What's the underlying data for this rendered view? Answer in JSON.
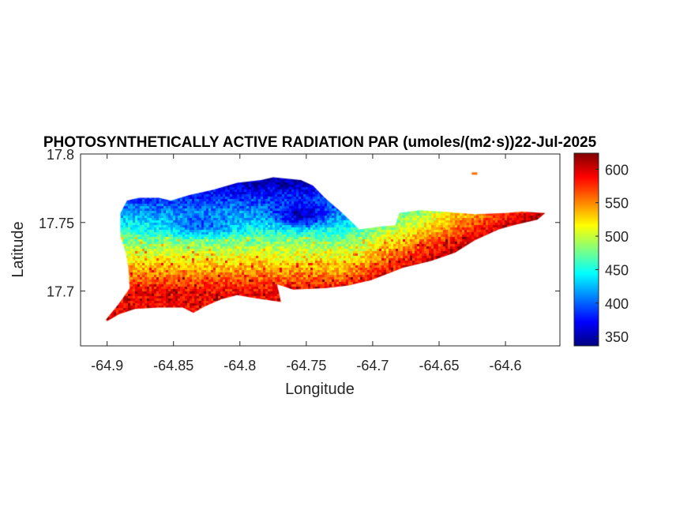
{
  "chart_data": {
    "type": "heatmap",
    "title": "PHOTOSYNTHETICALLY ACTIVE RADIATION PAR (umoles/(m2·s))22-Jul-2025",
    "xlabel": "Longitude",
    "ylabel": "Latitude",
    "xlim": [
      -64.92,
      -64.559
    ],
    "ylim": [
      17.66,
      17.8
    ],
    "xticks": [
      -64.9,
      -64.85,
      -64.8,
      -64.75,
      -64.7,
      -64.65,
      -64.6
    ],
    "xtick_labels": [
      "-64.9",
      "-64.85",
      "-64.8",
      "-64.75",
      "-64.7",
      "-64.65",
      "-64.6"
    ],
    "yticks": [
      17.7,
      17.75,
      17.8
    ],
    "ytick_labels": [
      "17.7",
      "17.75",
      "17.8"
    ],
    "colorbar": {
      "colormap": "jet",
      "clim": [
        336,
        624
      ],
      "ticks": [
        350,
        400,
        450,
        500,
        550,
        600
      ],
      "tick_labels": [
        "350",
        "400",
        "450",
        "500",
        "550",
        "600"
      ]
    },
    "grid": false,
    "island_outline_lonlat": [
      [
        -64.901,
        17.679
      ],
      [
        -64.891,
        17.691
      ],
      [
        -64.883,
        17.702
      ],
      [
        -64.884,
        17.717
      ],
      [
        -64.886,
        17.728
      ],
      [
        -64.89,
        17.74
      ],
      [
        -64.89,
        17.757
      ],
      [
        -64.885,
        17.766
      ],
      [
        -64.876,
        17.768
      ],
      [
        -64.861,
        17.768
      ],
      [
        -64.852,
        17.766
      ],
      [
        -64.838,
        17.77
      ],
      [
        -64.82,
        17.774
      ],
      [
        -64.802,
        17.779
      ],
      [
        -64.784,
        17.781
      ],
      [
        -64.775,
        17.783
      ],
      [
        -64.754,
        17.781
      ],
      [
        -64.745,
        17.777
      ],
      [
        -64.736,
        17.768
      ],
      [
        -64.724,
        17.758
      ],
      [
        -64.71,
        17.745
      ],
      [
        -64.695,
        17.747
      ],
      [
        -64.683,
        17.748
      ],
      [
        -64.68,
        17.757
      ],
      [
        -64.665,
        17.759
      ],
      [
        -64.647,
        17.758
      ],
      [
        -64.623,
        17.756
      ],
      [
        -64.6,
        17.757
      ],
      [
        -64.588,
        17.758
      ],
      [
        -64.57,
        17.757
      ],
      [
        -64.576,
        17.752
      ],
      [
        -64.594,
        17.748
      ],
      [
        -64.605,
        17.745
      ],
      [
        -64.623,
        17.737
      ],
      [
        -64.638,
        17.728
      ],
      [
        -64.656,
        17.722
      ],
      [
        -64.677,
        17.717
      ],
      [
        -64.701,
        17.708
      ],
      [
        -64.719,
        17.704
      ],
      [
        -64.736,
        17.702
      ],
      [
        -64.76,
        17.701
      ],
      [
        -64.772,
        17.705
      ],
      [
        -64.769,
        17.692
      ],
      [
        -64.79,
        17.695
      ],
      [
        -64.802,
        17.697
      ],
      [
        -64.814,
        17.694
      ],
      [
        -64.826,
        17.689
      ],
      [
        -64.835,
        17.684
      ],
      [
        -64.843,
        17.688
      ],
      [
        -64.861,
        17.688
      ],
      [
        -64.879,
        17.687
      ],
      [
        -64.891,
        17.683
      ],
      [
        -64.9,
        17.678
      ]
    ],
    "islet_lonlat": [
      -64.623,
      17.786
    ],
    "pattern": "lowest values (~360-400) over north-central island near -64.76/17.755 and -64.83/17.748; north coast cyan-green (~450-490); south coast orange-red (~560-620); eastern part yellow-orange (~520-580)"
  }
}
